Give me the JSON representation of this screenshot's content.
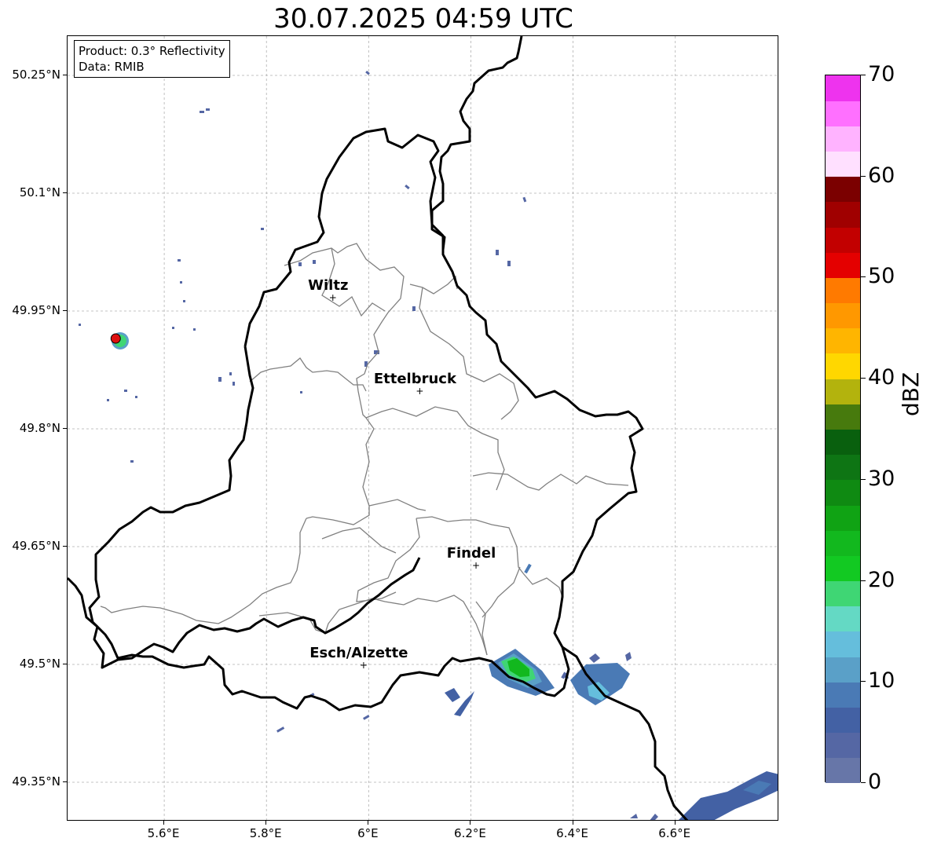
{
  "title": "30.07.2025 04:59 UTC",
  "info": {
    "product": "Product: 0.3° Reflectivity",
    "data": "Data: RMIB"
  },
  "latitude_labels": [
    "50.25°N",
    "50.1°N",
    "49.95°N",
    "49.8°N",
    "49.65°N",
    "49.5°N",
    "49.35°N"
  ],
  "longitude_labels": [
    "5.6°E",
    "5.8°E",
    "6°E",
    "6.2°E",
    "6.4°E",
    "6.6°E"
  ],
  "cities": [
    {
      "name": "Wiltz",
      "lon": 5.93,
      "lat": 49.967
    },
    {
      "name": "Ettelbruck",
      "lon": 6.1,
      "lat": 49.848
    },
    {
      "name": "Findel",
      "lon": 6.21,
      "lat": 49.626
    },
    {
      "name": "Esch/Alzette",
      "lon": 5.99,
      "lat": 49.499
    }
  ],
  "radar_site": {
    "lon": 5.505,
    "lat": 49.915,
    "color": "#dd1111"
  },
  "colorbar": {
    "unit": "dBZ",
    "min": 0,
    "max": 70,
    "tick_labels": [
      "0",
      "10",
      "20",
      "30",
      "40",
      "50",
      "60",
      "70"
    ],
    "colors": [
      "#6776a8",
      "#5567a4",
      "#4361a4",
      "#4a7ab5",
      "#5aa0c8",
      "#65bedc",
      "#64d9c4",
      "#3fd674",
      "#12c922",
      "#12b81e",
      "#10a314",
      "#0f8a12",
      "#0e7514",
      "#09600e",
      "#477a0d",
      "#b3b30d",
      "#ffd700",
      "#ffb500",
      "#ff9800",
      "#ff7a00",
      "#e40000",
      "#c20000",
      "#a00000",
      "#7b0000",
      "#ffe0ff",
      "#ffb3ff",
      "#ff70ff",
      "#ee33ee"
    ]
  }
}
